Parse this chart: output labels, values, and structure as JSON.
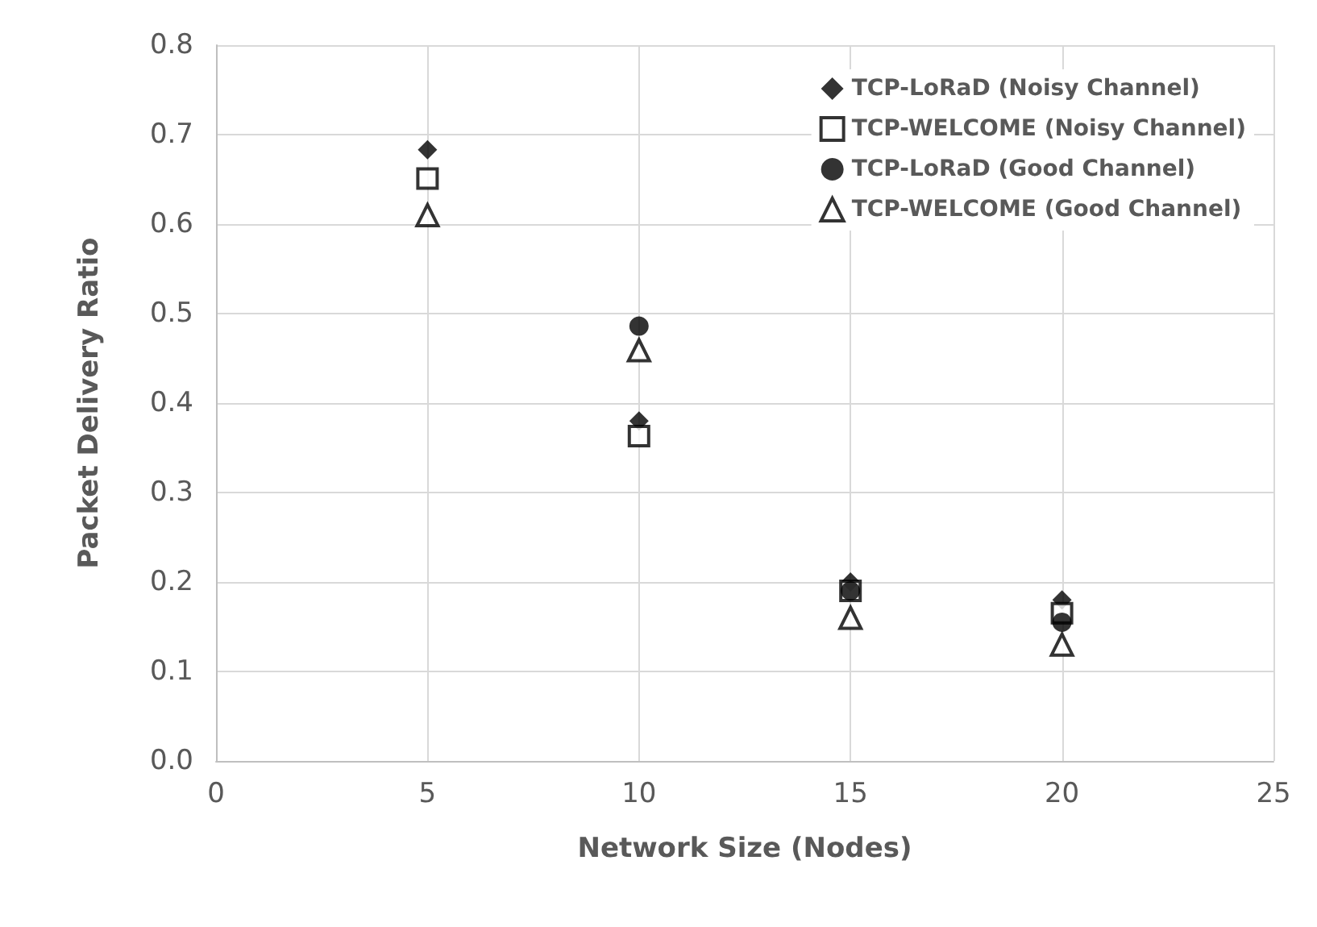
{
  "chart_data": {
    "type": "scatter",
    "xlabel": "Network Size (Nodes)",
    "ylabel": "Packet Delivery Ratio",
    "x": [
      5,
      10,
      15,
      20
    ],
    "series": [
      {
        "name": "TCP-LoRaD (Noisy Channel)",
        "color": "#000000",
        "marker": "diamond",
        "values": [
          0.683,
          0.38,
          0.2,
          0.18
        ]
      },
      {
        "name": "TCP-WELCOME (Noisy Channel)",
        "color": "#000000",
        "marker": "square",
        "values": [
          0.651,
          0.363,
          0.19,
          0.165
        ]
      },
      {
        "name": "TCP-LoRaD (Good Channel)",
        "color": "#000000",
        "marker": "circle",
        "values": [
          null,
          0.486,
          0.19,
          0.155
        ]
      },
      {
        "name": "TCP-WELCOME (Good Channel)",
        "color": "#000000",
        "marker": "triangle",
        "values": [
          0.61,
          0.459,
          0.16,
          0.13
        ]
      }
    ],
    "xlim": [
      0,
      25
    ],
    "xticks": [
      0,
      5,
      10,
      15,
      20,
      25
    ],
    "ylim": [
      0,
      0.8
    ],
    "yticks": [
      {
        "value": 0,
        "label": "0.0"
      },
      0.1,
      0.2,
      0.3,
      0.4,
      0.5,
      0.6,
      0.7,
      0.8
    ],
    "grid": true,
    "legend": "top right"
  }
}
